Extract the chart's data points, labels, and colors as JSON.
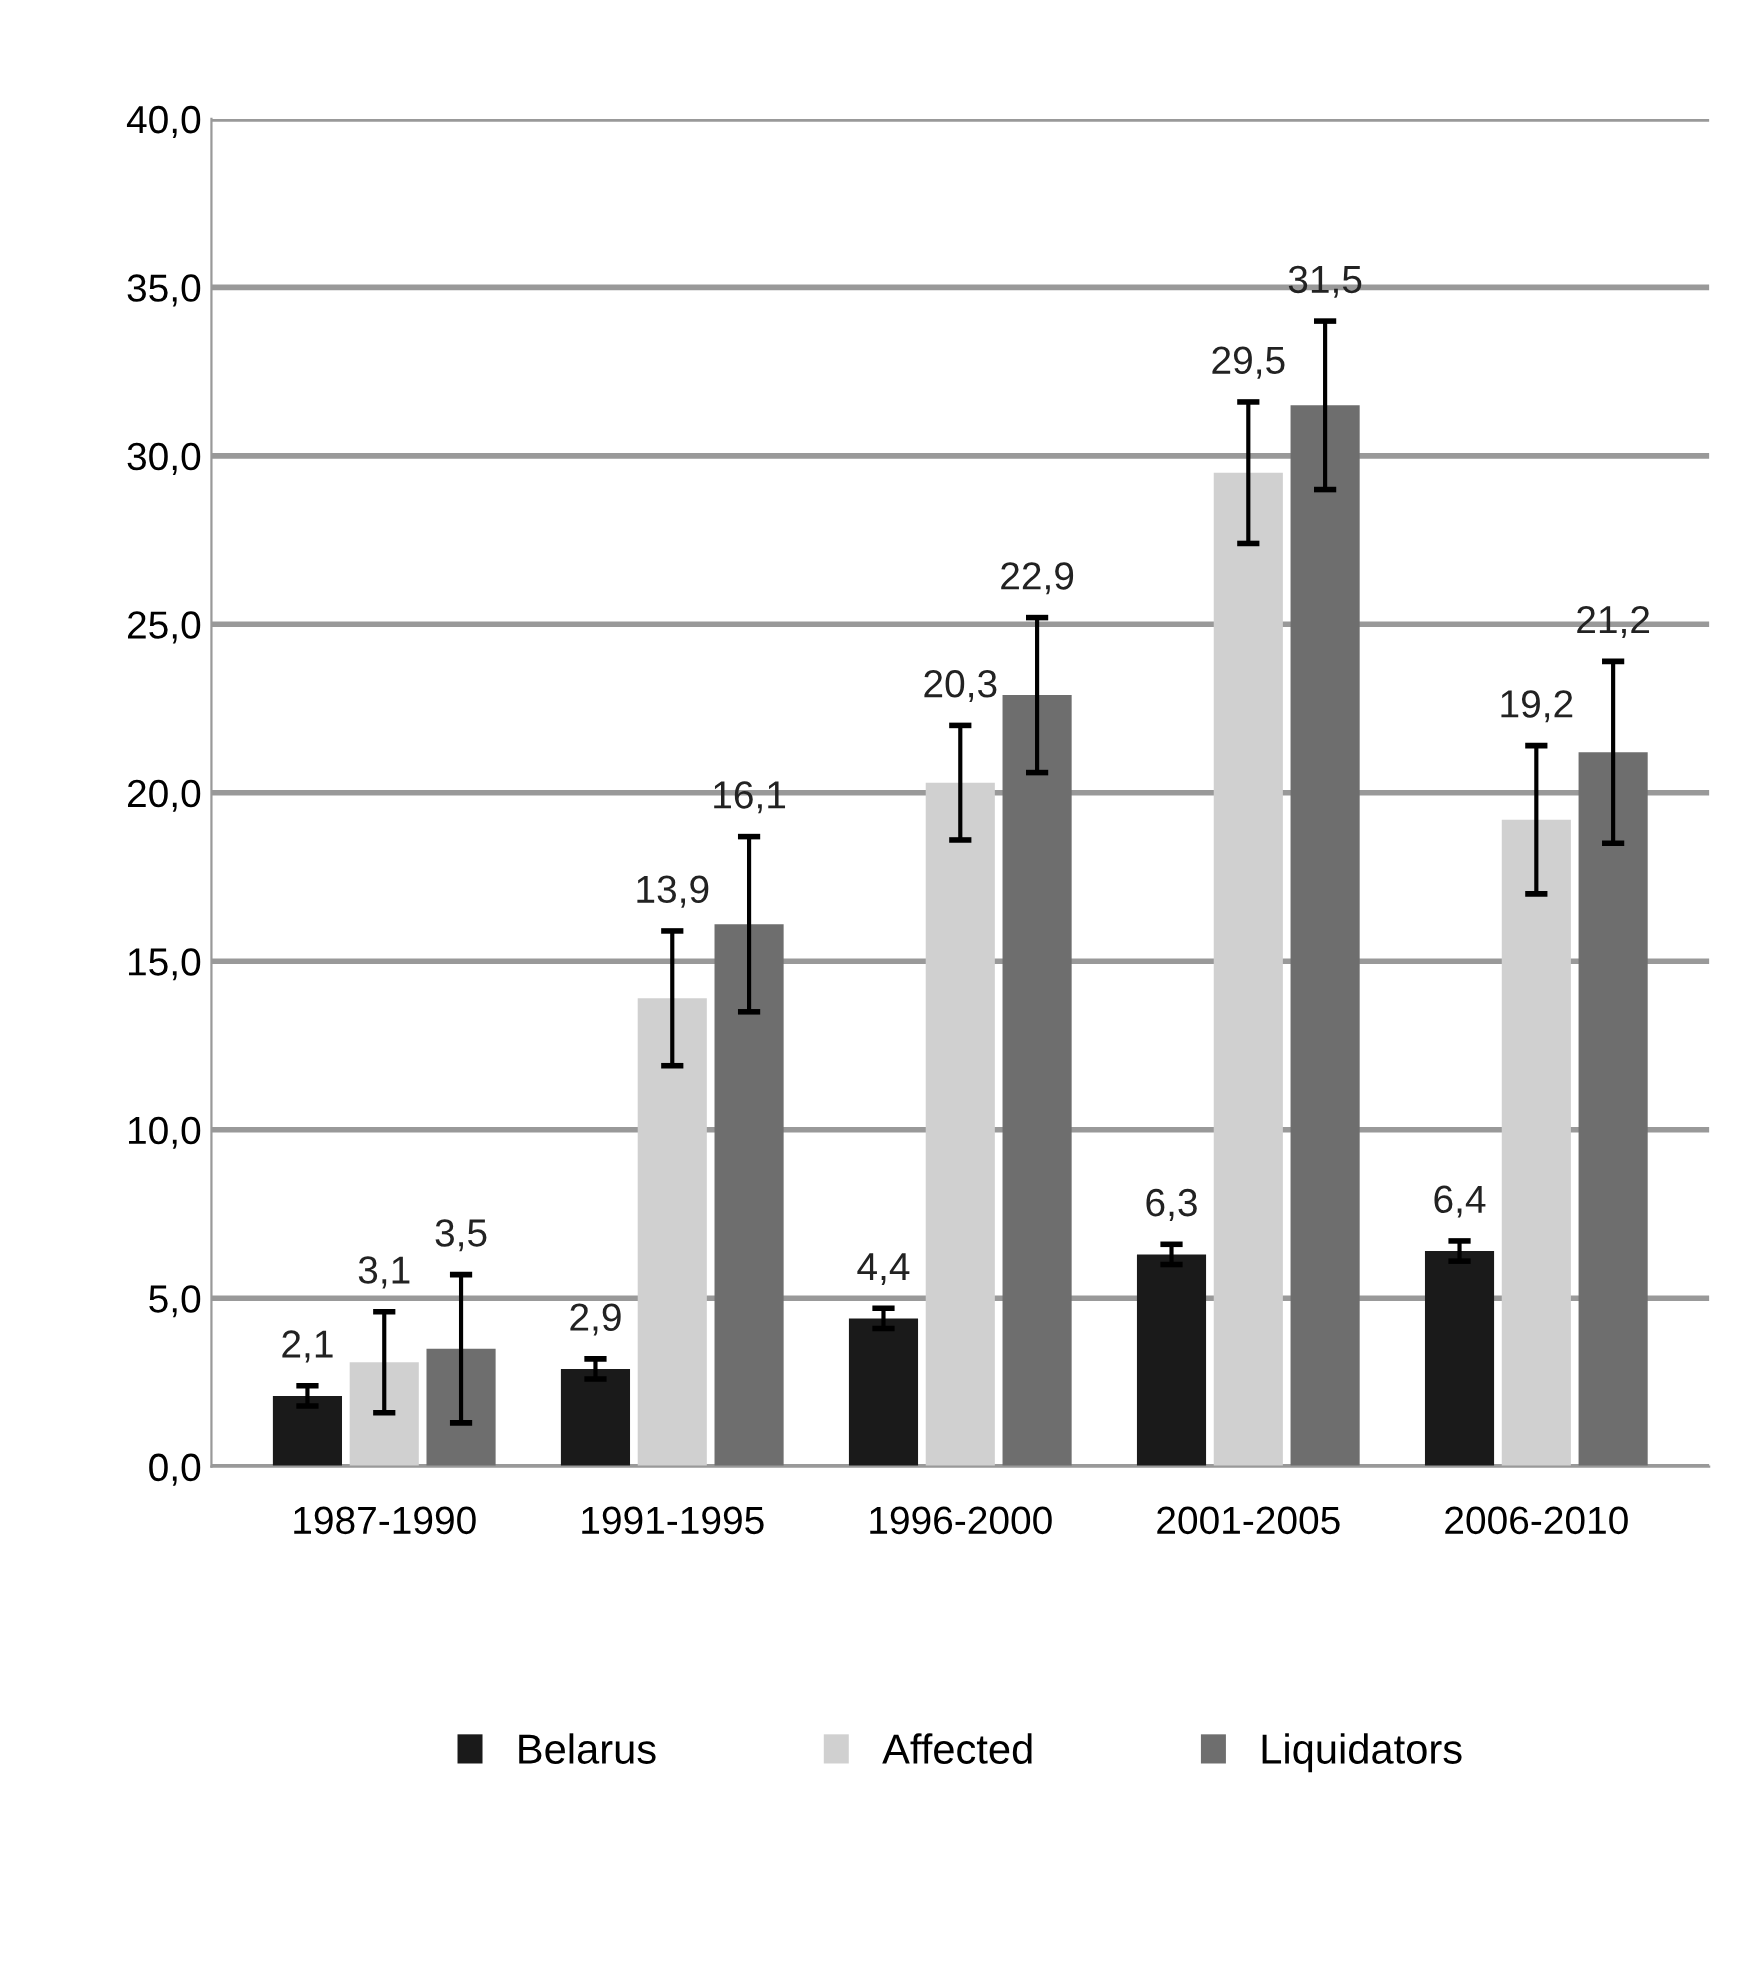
{
  "chart_data": {
    "type": "bar",
    "categories": [
      "1987-1990",
      "1991-1995",
      "1996-2000",
      "2001-2005",
      "2006-2010"
    ],
    "series": [
      {
        "name": "Belarus",
        "color": "#1a1a1a",
        "values": [
          2.1,
          2.9,
          4.4,
          6.3,
          6.4
        ],
        "errors": [
          0.3,
          0.3,
          0.3,
          0.3,
          0.3
        ],
        "value_labels": [
          "2,1",
          "2,9",
          "4,4",
          "6,3",
          "6,4"
        ]
      },
      {
        "name": "Affected",
        "color": "#d0d0d0",
        "values": [
          3.1,
          13.9,
          20.3,
          29.5,
          19.2
        ],
        "errors": [
          1.5,
          2.0,
          1.7,
          2.1,
          2.2
        ],
        "value_labels": [
          "3,1",
          "13,9",
          "20,3",
          "29,5",
          "19,2"
        ]
      },
      {
        "name": "Liquidators",
        "color": "#6e6e6e",
        "values": [
          3.5,
          16.1,
          22.9,
          31.5,
          21.2
        ],
        "errors": [
          2.2,
          2.6,
          2.3,
          2.5,
          2.7
        ],
        "value_labels": [
          "3,5",
          "16,1",
          "22,9",
          "31,5",
          "21,2"
        ]
      }
    ],
    "ylim": [
      0,
      40
    ],
    "yticks": [
      {
        "value": 0,
        "label": "0,0"
      },
      {
        "value": 5,
        "label": "5,0"
      },
      {
        "value": 10,
        "label": "10,0"
      },
      {
        "value": 15,
        "label": "15,0"
      },
      {
        "value": 20,
        "label": "20,0"
      },
      {
        "value": 25,
        "label": "25,0"
      },
      {
        "value": 30,
        "label": "30,0"
      },
      {
        "value": 35,
        "label": "35,0"
      },
      {
        "value": 40,
        "label": "40,0"
      }
    ],
    "grid": "y",
    "legend": "bottom"
  }
}
